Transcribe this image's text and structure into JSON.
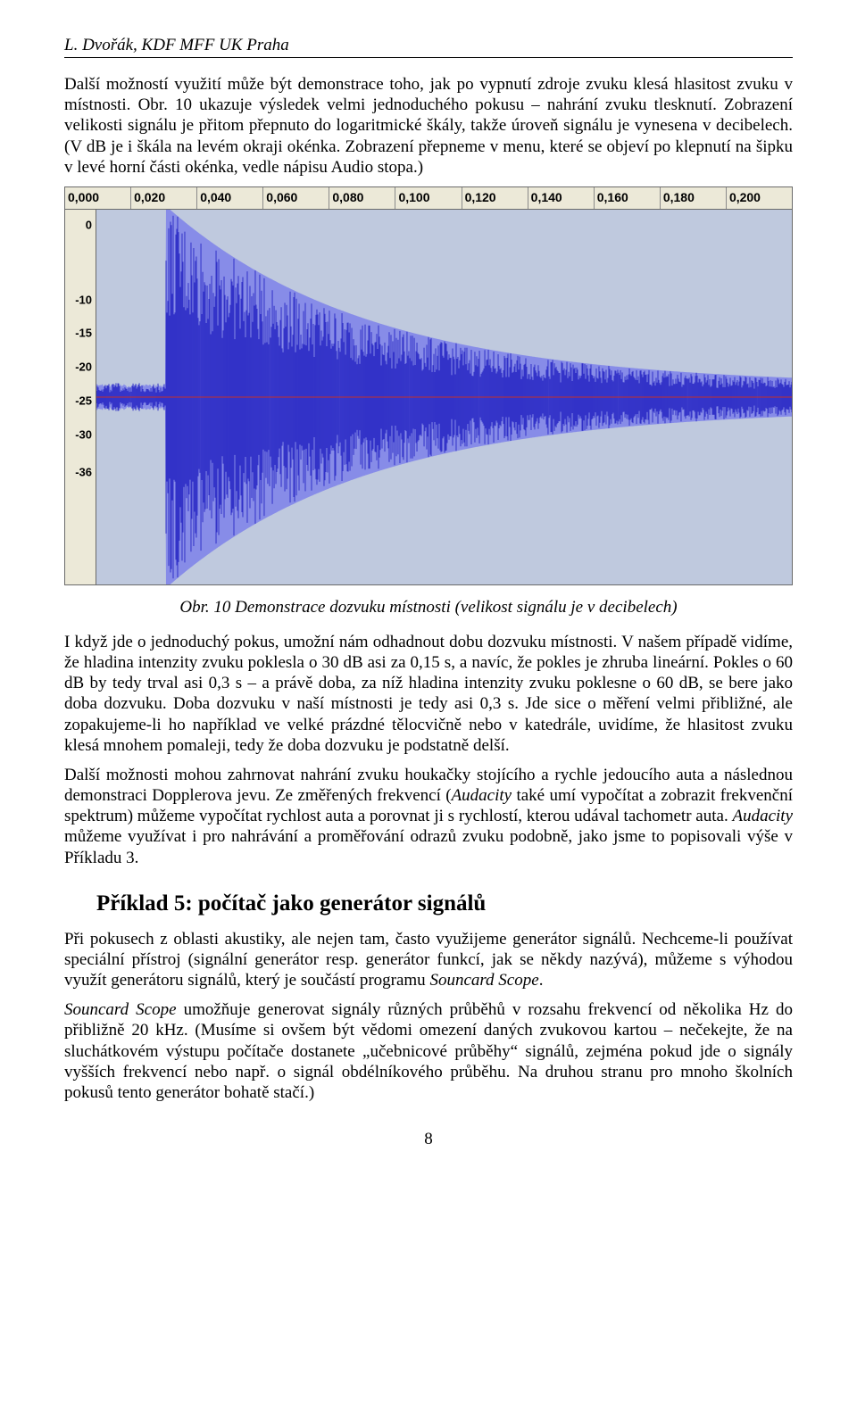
{
  "header": "L. Dvořák, KDF MFF UK Praha",
  "para1": "Další možností využití může být demonstrace toho, jak po vypnutí zdroje zvuku klesá hlasitost zvuku v místnosti. Obr. 10 ukazuje výsledek velmi jednoduchého pokusu – nahrání zvuku tlesknutí. Zobrazení velikosti signálu je přitom přepnuto do logaritmické škály, takže úroveň signálu je vynesena v decibelech. (V dB je i škála na levém okraji okénka. Zobrazení přepneme v menu, které se objeví po klepnutí na šipku v levé horní části okénka, vedle nápisu Audio stopa.)",
  "caption": "Obr. 10 Demonstrace dozvuku místnosti (velikost signálu je v decibelech)",
  "para2": "I když jde o jednoduchý pokus, umožní nám odhadnout dobu dozvuku místnosti. V našem případě vidíme, že hladina intenzity zvuku poklesla o 30 dB asi za 0,15 s, a navíc, že pokles je zhruba lineární. Pokles o 60 dB by tedy trval asi 0,3 s – a právě doba, za níž hladina intenzity zvuku poklesne o 60 dB, se bere jako doba dozvuku. Doba dozvuku v naší místnosti je tedy asi 0,3 s. Jde sice o měření velmi přibližné, ale zopakujeme-li ho například ve velké prázdné tělocvičně nebo v katedrále, uvidíme, že hlasitost zvuku klesá mnohem pomaleji, tedy že doba dozvuku je podstatně delší.",
  "para3a": "Další možnosti mohou zahrnovat nahrání zvuku houkačky stojícího a rychle jedoucího auta a následnou demonstraci Dopplerova jevu. Ze změřených frekvencí (",
  "para3b": " také umí vypočítat a zobrazit frekvenční spektrum) můžeme vypočítat rychlost auta a porovnat ji s rychlostí, kterou udával tachometr auta. ",
  "para3c": " můžeme využívat i pro nahrávání a proměřování odrazů zvuku podobně, jako jsme to popisovali výše v Příkladu 3.",
  "audacity": "Audacity",
  "section_heading": "Příklad 5: počítač jako generátor signálů",
  "para4a": "Při pokusech z oblasti akustiky, ale nejen tam, často využijeme generátor signálů. Nechceme-li používat speciální přístroj (signální generátor resp. generátor funkcí, jak se někdy nazývá), můžeme s výhodou využít generátoru signálů, který je součástí programu ",
  "para4b": ".",
  "soundcard": "Souncard Scope",
  "para5a": "Souncard Scope",
  "para5b": " umožňuje generovat signály různých průběhů v rozsahu frekvencí od několika Hz do přibližně 20 kHz. (Musíme si ovšem být vědomi omezení daných zvukovou kartou – nečekejte, že na sluchátkovém výstupu počítače dostanete „učebnicové průběhy“ signálů, zejména pokud jde o signály vyšších frekvencí nebo např. o signál obdélníkového průběhu. Na druhou stranu pro mnoho školních pokusů tento generátor bohatě stačí.)",
  "page_number": "8",
  "chart": {
    "type": "waveform-db",
    "time_labels": [
      "0,000",
      "0,020",
      "0,040",
      "0,060",
      "0,080",
      "0,100",
      "0,120",
      "0,140",
      "0,160",
      "0,180",
      "0,200"
    ],
    "db_ticks": [
      {
        "label": "0",
        "pos_pct": 4
      },
      {
        "label": "-10",
        "pos_pct": 24
      },
      {
        "label": "-15",
        "pos_pct": 33
      },
      {
        "label": "-20",
        "pos_pct": 42
      },
      {
        "label": "-25",
        "pos_pct": 51
      },
      {
        "label": "-30",
        "pos_pct": 60
      },
      {
        "label": "-36",
        "pos_pct": 70
      }
    ],
    "background_color": "#bfc9de",
    "ruler_bg": "#ece9d8",
    "wave_color": "#3232c8",
    "wave_fill": "#5a5af0",
    "centerline_color": "#c03030",
    "n_samples": 780,
    "decay_start": 0.02,
    "decay_end": 0.2,
    "amp_start_pct": 96,
    "amp_end_pct": 6,
    "noise_floor_pct": 5,
    "seed": 42
  }
}
